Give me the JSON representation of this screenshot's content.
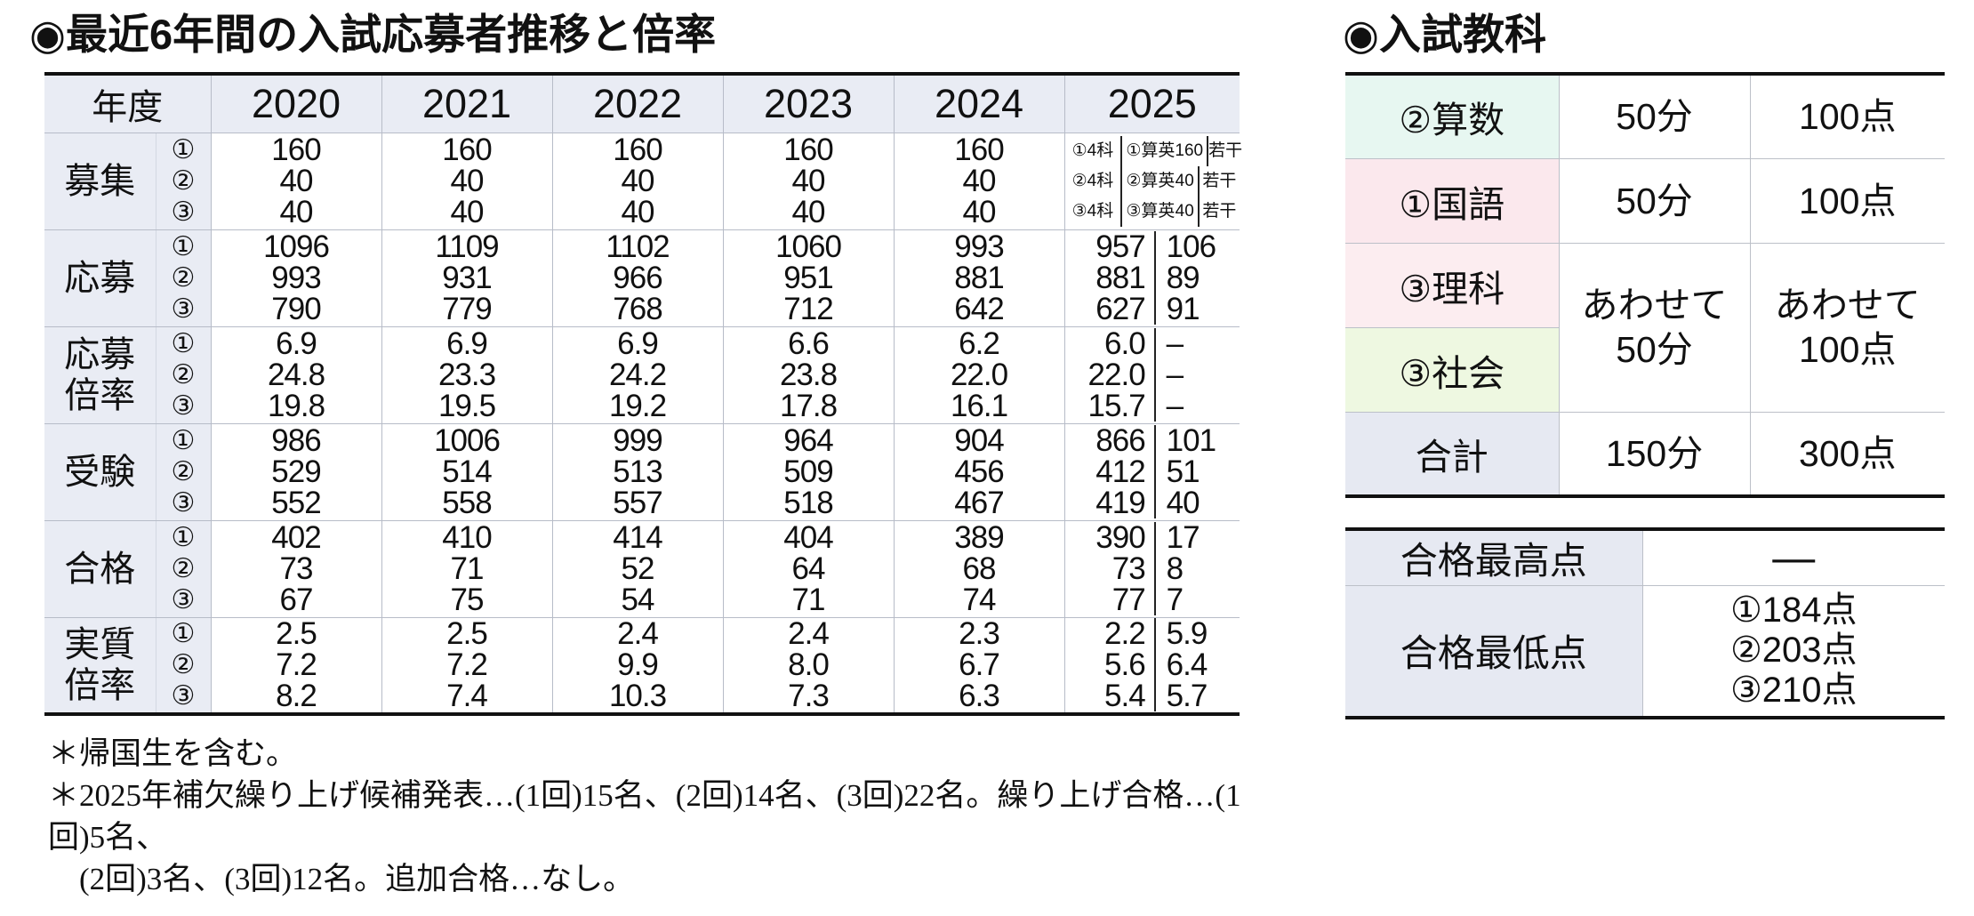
{
  "left": {
    "title": "◉最近6年間の入試応募者推移と倍率",
    "year_header": "年度",
    "years": [
      "2020",
      "2021",
      "2022",
      "2023",
      "2024",
      "2025"
    ],
    "circles": [
      "①",
      "②",
      "③"
    ],
    "rows": [
      {
        "label": "募集",
        "cells": [
          [
            "160",
            "40",
            "40"
          ],
          [
            "160",
            "40",
            "40"
          ],
          [
            "160",
            "40",
            "40"
          ],
          [
            "160",
            "40",
            "40"
          ],
          [
            "160",
            "40",
            "40"
          ]
        ],
        "cell_2025": {
          "type": "admit",
          "lines": [
            [
              "①4科",
              "①算英",
              "160",
              "若干"
            ],
            [
              "②4科",
              "②算英",
              "40",
              "若干"
            ],
            [
              "③4科",
              "③算英",
              "40",
              "若干"
            ]
          ]
        }
      },
      {
        "label": "応募",
        "cells": [
          [
            "1096",
            "993",
            "790"
          ],
          [
            "1109",
            "931",
            "779"
          ],
          [
            "1102",
            "966",
            "768"
          ],
          [
            "1060",
            "951",
            "712"
          ],
          [
            "993",
            "881",
            "642"
          ]
        ],
        "cell_2025": {
          "type": "pair",
          "lines": [
            [
              "957",
              "106"
            ],
            [
              "881",
              "89"
            ],
            [
              "627",
              "91"
            ]
          ]
        }
      },
      {
        "label": "応募\n倍率",
        "cells": [
          [
            "6.9",
            "24.8",
            "19.8"
          ],
          [
            "6.9",
            "23.3",
            "19.5"
          ],
          [
            "6.9",
            "24.2",
            "19.2"
          ],
          [
            "6.6",
            "23.8",
            "17.8"
          ],
          [
            "6.2",
            "22.0",
            "16.1"
          ]
        ],
        "cell_2025": {
          "type": "pair",
          "lines": [
            [
              "6.0",
              "–"
            ],
            [
              "22.0",
              "–"
            ],
            [
              "15.7",
              "–"
            ]
          ]
        }
      },
      {
        "label": "受験",
        "cells": [
          [
            "986",
            "529",
            "552"
          ],
          [
            "1006",
            "514",
            "558"
          ],
          [
            "999",
            "513",
            "557"
          ],
          [
            "964",
            "509",
            "518"
          ],
          [
            "904",
            "456",
            "467"
          ]
        ],
        "cell_2025": {
          "type": "pair",
          "lines": [
            [
              "866",
              "101"
            ],
            [
              "412",
              "51"
            ],
            [
              "419",
              "40"
            ]
          ]
        }
      },
      {
        "label": "合格",
        "cells": [
          [
            "402",
            "73",
            "67"
          ],
          [
            "410",
            "71",
            "75"
          ],
          [
            "414",
            "52",
            "54"
          ],
          [
            "404",
            "64",
            "71"
          ],
          [
            "389",
            "68",
            "74"
          ]
        ],
        "cell_2025": {
          "type": "pair",
          "lines": [
            [
              "390",
              "17"
            ],
            [
              "73",
              "8"
            ],
            [
              "77",
              "7"
            ]
          ]
        }
      },
      {
        "label": "実質\n倍率",
        "cells": [
          [
            "2.5",
            "7.2",
            "8.2"
          ],
          [
            "2.5",
            "7.2",
            "7.4"
          ],
          [
            "2.4",
            "9.9",
            "10.3"
          ],
          [
            "2.4",
            "8.0",
            "7.3"
          ],
          [
            "2.3",
            "6.7",
            "6.3"
          ]
        ],
        "cell_2025": {
          "type": "pair",
          "lines": [
            [
              "2.2",
              "5.9"
            ],
            [
              "5.6",
              "6.4"
            ],
            [
              "5.4",
              "5.7"
            ]
          ]
        }
      }
    ],
    "footnotes": [
      "＊帰国生を含む。",
      "＊2025年補欠繰り上げ候補発表…(1回)15名、(2回)14名、(3回)22名。繰り上げ合格…(1回)5名、",
      "　(2回)3名、(3回)12名。追加合格…なし。"
    ]
  },
  "right": {
    "title": "◉入試教科",
    "subjects_table": {
      "rows": [
        {
          "label": "②算数",
          "bg": "#e7f7f1",
          "time": "50分",
          "points": "100点"
        },
        {
          "label": "①国語",
          "bg": "#fbe8ed",
          "time": "50分",
          "points": "100点"
        },
        {
          "label": "③理科",
          "bg": "#fcedf0",
          "time": "あわせて\n50分",
          "points": "あわせて\n100点",
          "rowspan": 2
        },
        {
          "label": "③社会",
          "bg": "#eef8e1"
        },
        {
          "label": "合計",
          "bg": "#e6e9f2",
          "time": "150分",
          "points": "300点"
        }
      ]
    },
    "scores_table": {
      "rows": [
        {
          "label": "合格最高点",
          "value": "—"
        },
        {
          "label": "合格最低点",
          "lines": [
            "①184点",
            "②203点",
            "③210点"
          ]
        }
      ]
    }
  },
  "colors": {
    "header_bg": "#e9ecf4",
    "heavy_border": "#111111",
    "thin_border": "#b7bcc8"
  }
}
